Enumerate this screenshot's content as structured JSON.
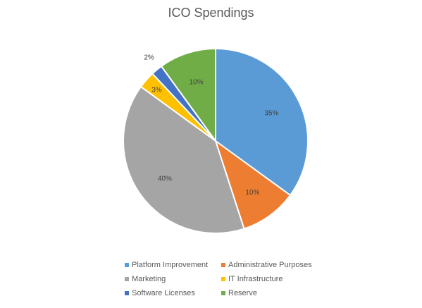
{
  "chart_data": {
    "type": "pie",
    "title": "ICO Spendings",
    "legend_position": "bottom",
    "slices": [
      {
        "label": "Platform Improvement",
        "value": 35,
        "data_label": "35%",
        "color": "#5b9bd5"
      },
      {
        "label": "Administrative Purposes",
        "value": 10,
        "data_label": "10%",
        "color": "#ed7d31"
      },
      {
        "label": "Marketing",
        "value": 40,
        "data_label": "40%",
        "color": "#a5a5a5"
      },
      {
        "label": "IT Infrastructure",
        "value": 3,
        "data_label": "3%",
        "color": "#ffc000"
      },
      {
        "label": "Software Licenses",
        "value": 2,
        "data_label": "2%",
        "color": "#4472c4"
      },
      {
        "label": "Reserve",
        "value": 10,
        "data_label": "10%",
        "color": "#70ad47"
      }
    ]
  }
}
